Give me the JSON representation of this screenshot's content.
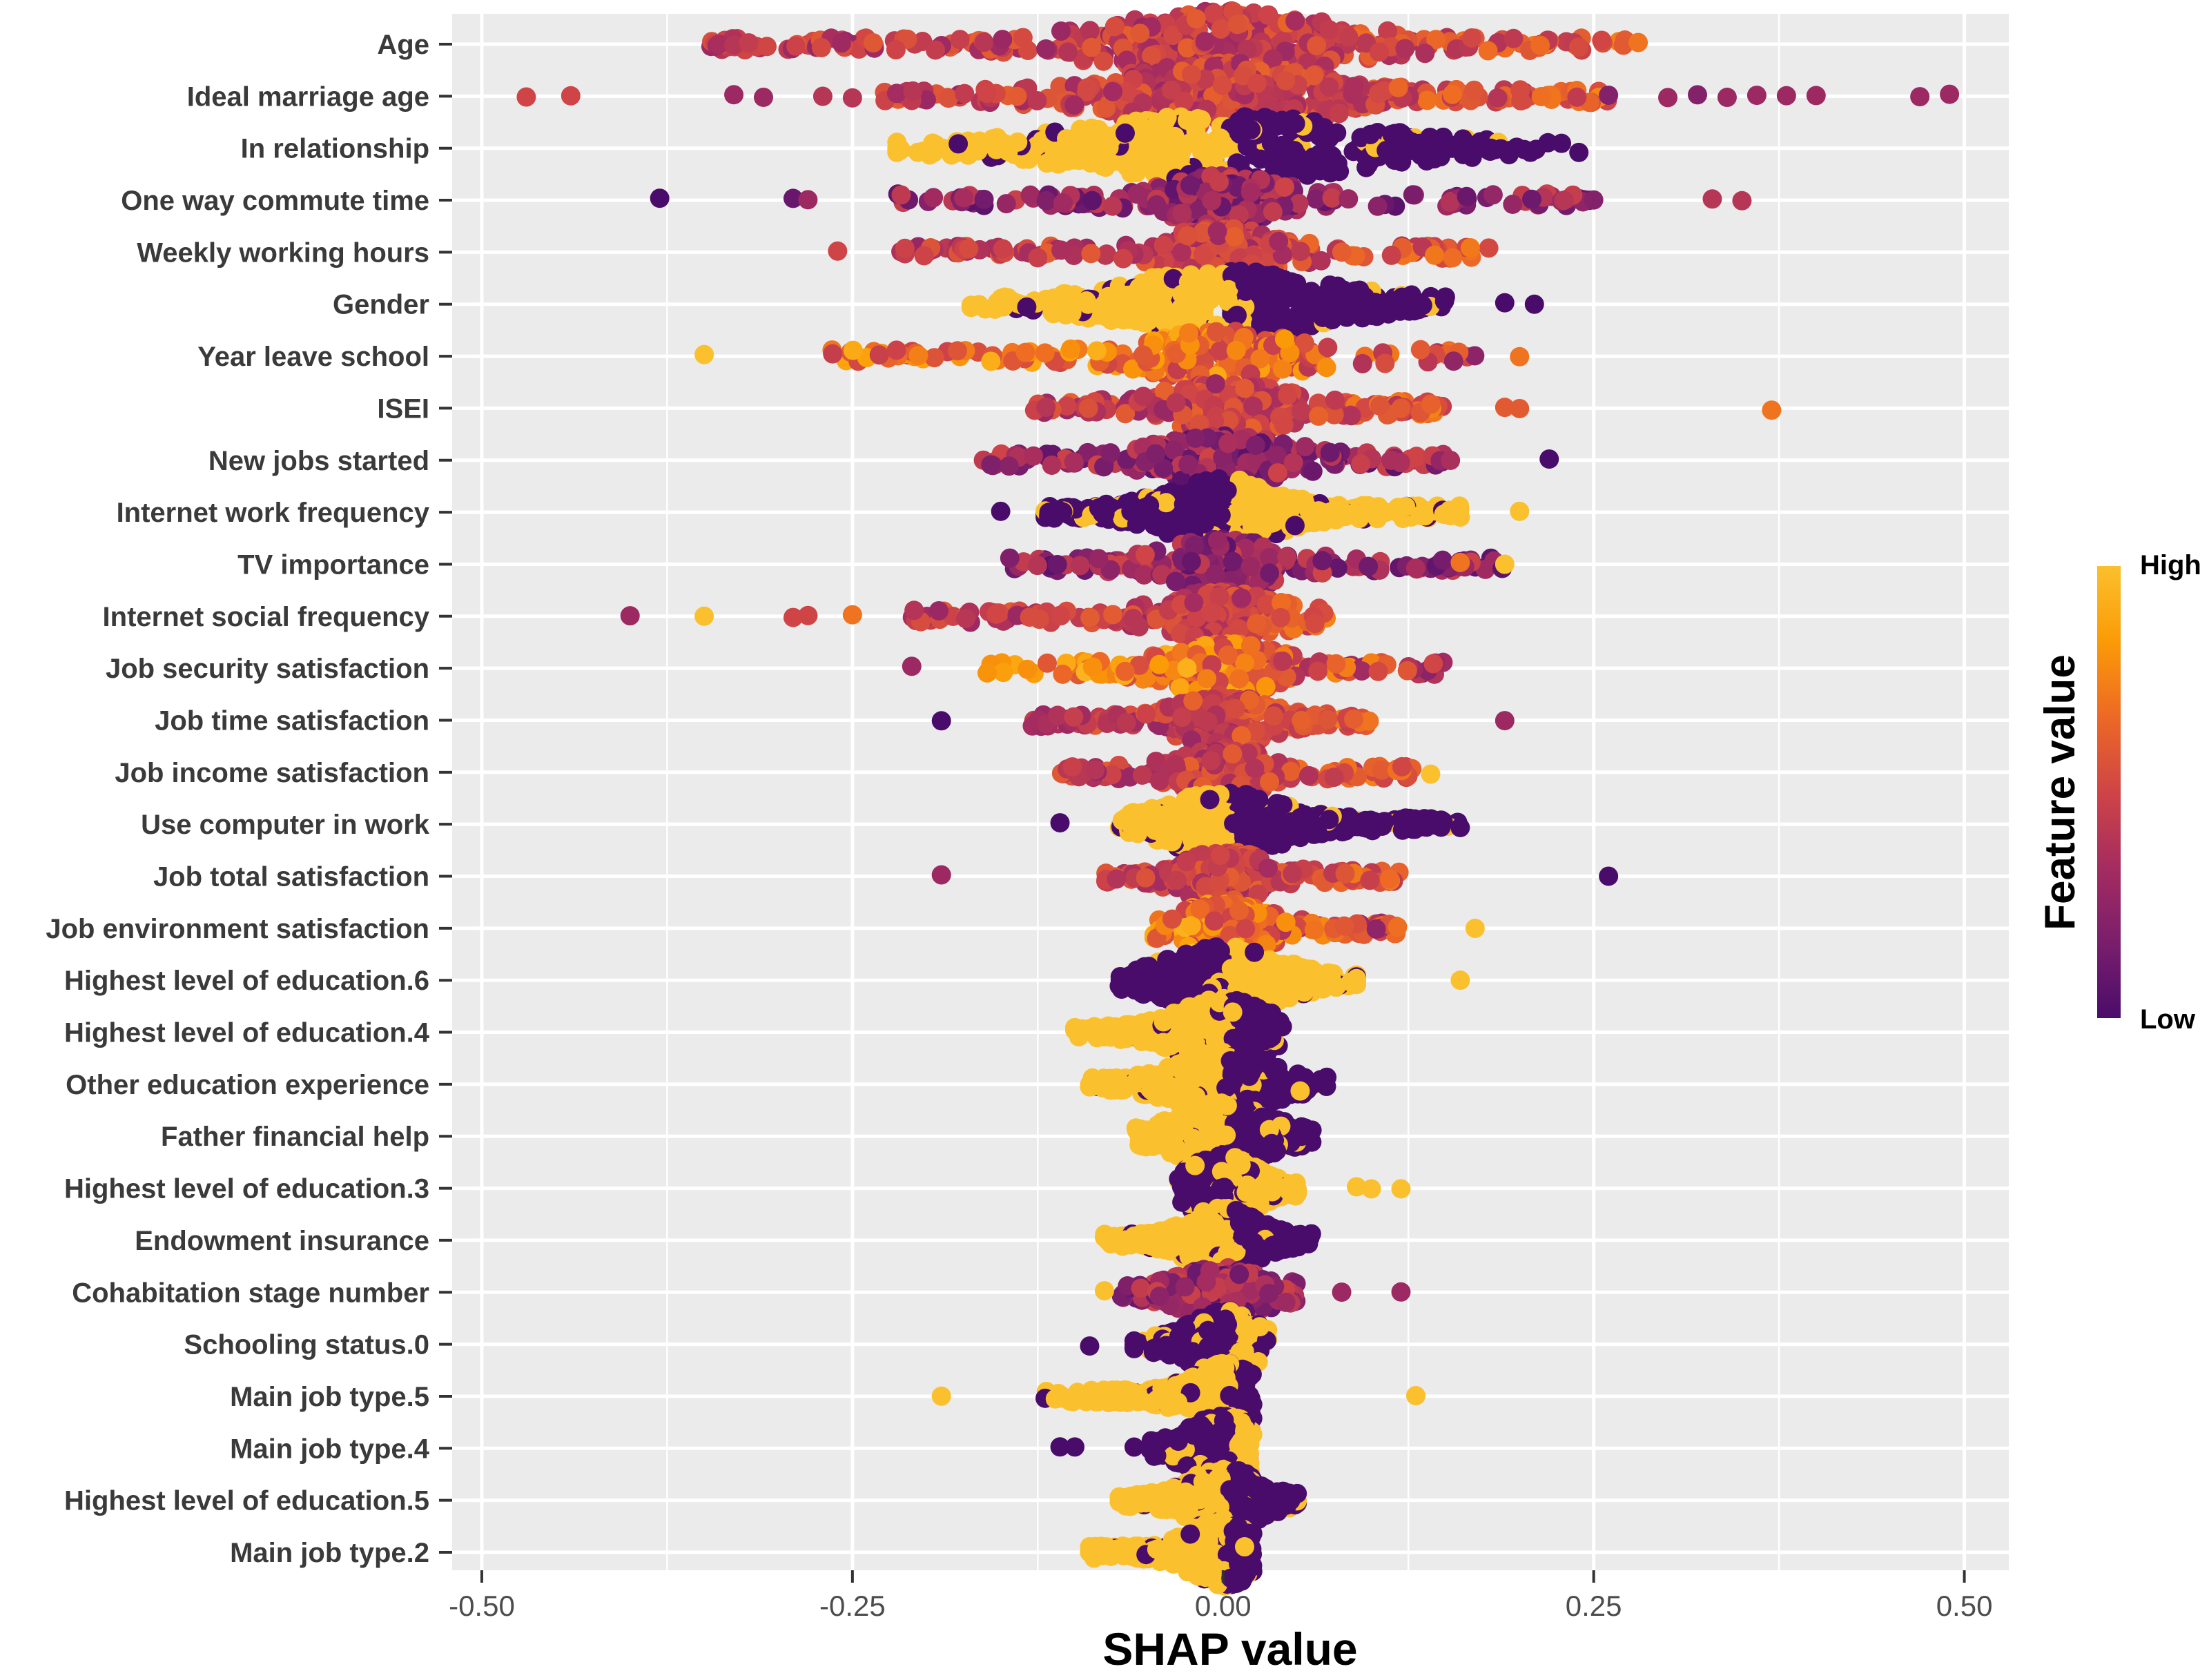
{
  "chart_data": {
    "type": "scatter",
    "subtype": "shap-beeswarm",
    "xlabel": "SHAP value",
    "xlim": [
      -0.52,
      0.53
    ],
    "xticks": [
      -0.5,
      -0.25,
      0.0,
      0.25,
      0.5
    ],
    "xtick_labels": [
      "-0.50",
      "-0.25",
      "0.00",
      "0.25",
      "0.50"
    ],
    "legend": {
      "title": "Feature value",
      "high_label": "High",
      "low_label": "Low",
      "position": "right",
      "colors": [
        "#4a0c6b",
        "#7a1e6c",
        "#a52c60",
        "#cf4446",
        "#ed6925",
        "#fb9b06",
        "#fbc02d"
      ]
    },
    "features": [
      {
        "name": "Age",
        "range": [
          -0.35,
          0.28
        ],
        "spread": 0.1,
        "mode": "linear",
        "color_mode": "mixed_warm",
        "outliers": [
          [
            -0.34,
            0.35
          ],
          [
            -0.33,
            0.4
          ],
          [
            -0.32,
            0.45
          ],
          [
            0.27,
            0.6
          ],
          [
            0.28,
            0.7
          ]
        ]
      },
      {
        "name": "Ideal marriage age",
        "range": [
          -0.23,
          0.26
        ],
        "spread": 0.09,
        "mode": "linear",
        "color_mode": "mixed_warm",
        "outliers": [
          [
            -0.47,
            0.5
          ],
          [
            -0.44,
            0.5
          ],
          [
            -0.33,
            0.3
          ],
          [
            -0.31,
            0.3
          ],
          [
            -0.27,
            0.4
          ],
          [
            -0.25,
            0.4
          ],
          [
            0.3,
            0.3
          ],
          [
            0.32,
            0.2
          ],
          [
            0.34,
            0.3
          ],
          [
            0.36,
            0.3
          ],
          [
            0.38,
            0.3
          ],
          [
            0.4,
            0.3
          ],
          [
            0.47,
            0.3
          ],
          [
            0.49,
            0.3
          ],
          [
            0.26,
            0.2
          ]
        ]
      },
      {
        "name": "In relationship",
        "range": [
          -0.22,
          0.24
        ],
        "spread": 0.12,
        "mode": "binary_high_neg",
        "color_mode": "binary",
        "outliers": []
      },
      {
        "name": "One way commute time",
        "range": [
          -0.22,
          0.25
        ],
        "spread": 0.05,
        "mode": "sparse",
        "color_mode": "mixed_purple",
        "outliers": [
          [
            -0.38,
            0.0
          ],
          [
            -0.29,
            0.1
          ],
          [
            -0.28,
            0.3
          ],
          [
            0.33,
            0.4
          ],
          [
            0.35,
            0.4
          ],
          [
            0.23,
            0.4
          ],
          [
            0.25,
            0.2
          ]
        ]
      },
      {
        "name": "Weekly working hours",
        "range": [
          -0.22,
          0.18
        ],
        "spread": 0.05,
        "mode": "sparse",
        "color_mode": "mixed_warm",
        "outliers": [
          [
            -0.26,
            0.5
          ]
        ]
      },
      {
        "name": "Gender",
        "range": [
          -0.17,
          0.15
        ],
        "spread": 0.09,
        "mode": "binary_high_neg",
        "color_mode": "binary",
        "outliers": [
          [
            0.19,
            0.0
          ],
          [
            0.21,
            0.0
          ]
        ]
      },
      {
        "name": "Year leave school",
        "range": [
          -0.27,
          0.17
        ],
        "spread": 0.07,
        "mode": "sparse",
        "color_mode": "mixed_warm_high",
        "outliers": [
          [
            -0.35,
            1.0
          ],
          [
            0.2,
            0.7
          ]
        ]
      },
      {
        "name": "ISEI",
        "range": [
          -0.13,
          0.15
        ],
        "spread": 0.06,
        "mode": "sparse",
        "color_mode": "mixed_warm",
        "outliers": [
          [
            0.37,
            0.7
          ],
          [
            0.19,
            0.6
          ],
          [
            0.2,
            0.6
          ],
          [
            0.12,
            0.6
          ]
        ]
      },
      {
        "name": "New jobs started",
        "range": [
          -0.17,
          0.16
        ],
        "spread": 0.06,
        "mode": "sparse",
        "color_mode": "mixed_purple",
        "outliers": [
          [
            0.22,
            0.0
          ]
        ]
      },
      {
        "name": "Internet work frequency",
        "range": [
          -0.12,
          0.16
        ],
        "spread": 0.05,
        "mode": "binary_low_neg",
        "color_mode": "binary",
        "outliers": [
          [
            -0.15,
            0.0
          ],
          [
            0.2,
            1.0
          ]
        ]
      },
      {
        "name": "TV importance",
        "range": [
          -0.15,
          0.19
        ],
        "spread": 0.05,
        "mode": "sparse",
        "color_mode": "mixed_purple",
        "outliers": [
          [
            0.16,
            0.7
          ],
          [
            0.19,
            1.0
          ]
        ]
      },
      {
        "name": "Internet social frequency",
        "range": [
          -0.21,
          0.07
        ],
        "spread": 0.05,
        "mode": "sparse",
        "color_mode": "mixed_warm",
        "outliers": [
          [
            -0.4,
            0.3
          ],
          [
            -0.35,
            1.0
          ],
          [
            -0.29,
            0.5
          ],
          [
            -0.28,
            0.5
          ],
          [
            -0.25,
            0.7
          ]
        ]
      },
      {
        "name": "Job security satisfaction",
        "range": [
          -0.16,
          0.15
        ],
        "spread": 0.05,
        "mode": "sparse",
        "color_mode": "mixed_warm_high",
        "outliers": [
          [
            -0.21,
            0.3
          ]
        ]
      },
      {
        "name": "Job time satisfaction",
        "range": [
          -0.13,
          0.1
        ],
        "spread": 0.04,
        "mode": "sparse",
        "color_mode": "mixed_warm",
        "outliers": [
          [
            -0.19,
            0.0
          ],
          [
            0.19,
            0.3
          ]
        ]
      },
      {
        "name": "Job income satisfaction",
        "range": [
          -0.11,
          0.13
        ],
        "spread": 0.04,
        "mode": "sparse",
        "color_mode": "mixed_warm",
        "outliers": [
          [
            0.14,
            1.0
          ]
        ]
      },
      {
        "name": "Use computer in work",
        "range": [
          -0.07,
          0.16
        ],
        "spread": 0.05,
        "mode": "binary_high_neg",
        "color_mode": "binary",
        "outliers": [
          [
            -0.11,
            0.0
          ]
        ]
      },
      {
        "name": "Job total satisfaction",
        "range": [
          -0.08,
          0.12
        ],
        "spread": 0.04,
        "mode": "sparse",
        "color_mode": "mixed_warm",
        "outliers": [
          [
            -0.19,
            0.3
          ],
          [
            0.26,
            0.0
          ]
        ]
      },
      {
        "name": "Job environment satisfaction",
        "range": [
          -0.05,
          0.12
        ],
        "spread": 0.04,
        "mode": "sparse",
        "color_mode": "mixed_warm_high",
        "outliers": [
          [
            0.17,
            1.0
          ]
        ]
      },
      {
        "name": "Highest level of education.6",
        "range": [
          -0.07,
          0.09
        ],
        "spread": 0.05,
        "mode": "binary_low_neg",
        "color_mode": "binary",
        "outliers": [
          [
            0.16,
            1.0
          ]
        ]
      },
      {
        "name": "Highest level of education.4",
        "range": [
          -0.1,
          0.04
        ],
        "spread": 0.04,
        "mode": "binary_high_neg",
        "color_mode": "binary",
        "outliers": []
      },
      {
        "name": "Other education experience",
        "range": [
          -0.09,
          0.07
        ],
        "spread": 0.04,
        "mode": "binary_high_neg",
        "color_mode": "binary",
        "outliers": []
      },
      {
        "name": "Father financial help",
        "range": [
          -0.06,
          0.06
        ],
        "spread": 0.04,
        "mode": "binary_high_neg",
        "color_mode": "binary",
        "outliers": []
      },
      {
        "name": "Highest level of education.3",
        "range": [
          -0.03,
          0.05
        ],
        "spread": 0.03,
        "mode": "binary_low_neg",
        "color_mode": "binary",
        "outliers": [
          [
            0.09,
            1.0
          ],
          [
            0.1,
            1.0
          ],
          [
            0.12,
            1.0
          ]
        ]
      },
      {
        "name": "Endowment insurance",
        "range": [
          -0.08,
          0.06
        ],
        "spread": 0.03,
        "mode": "binary_high_neg",
        "color_mode": "binary",
        "outliers": []
      },
      {
        "name": "Cohabitation stage number",
        "range": [
          -0.07,
          0.05
        ],
        "spread": 0.04,
        "mode": "sparse",
        "color_mode": "mixed_purple",
        "outliers": [
          [
            -0.08,
            1.0
          ],
          [
            0.08,
            0.3
          ],
          [
            0.12,
            0.3
          ]
        ]
      },
      {
        "name": "Schooling status.0",
        "range": [
          -0.06,
          0.03
        ],
        "spread": 0.03,
        "mode": "binary_low_neg",
        "color_mode": "binary",
        "outliers": [
          [
            -0.09,
            0.0
          ]
        ]
      },
      {
        "name": "Main job type.5",
        "range": [
          -0.12,
          0.02
        ],
        "spread": 0.03,
        "mode": "binary_high_neg",
        "color_mode": "binary",
        "outliers": [
          [
            -0.19,
            1.0
          ],
          [
            0.13,
            1.0
          ]
        ]
      },
      {
        "name": "Main job type.4",
        "range": [
          -0.05,
          0.02
        ],
        "spread": 0.03,
        "mode": "binary_low_neg",
        "color_mode": "binary",
        "outliers": [
          [
            -0.11,
            0.0
          ],
          [
            -0.1,
            0.0
          ],
          [
            -0.06,
            0.0
          ]
        ]
      },
      {
        "name": "Highest level of education.5",
        "range": [
          -0.07,
          0.05
        ],
        "spread": 0.03,
        "mode": "binary_high_neg",
        "color_mode": "binary",
        "outliers": []
      },
      {
        "name": "Main job type.2",
        "range": [
          -0.09,
          0.02
        ],
        "spread": 0.03,
        "mode": "binary_high_neg",
        "color_mode": "binary",
        "outliers": []
      }
    ]
  }
}
